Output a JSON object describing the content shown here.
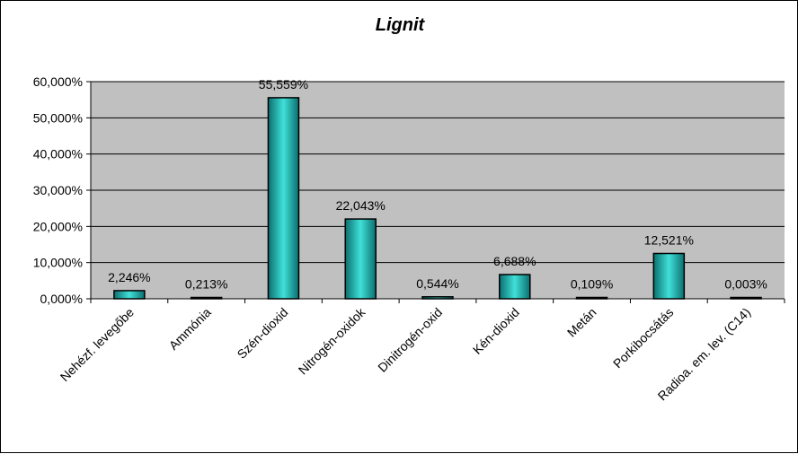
{
  "chart_data": {
    "type": "bar",
    "title": "Lignit",
    "xlabel": "",
    "ylabel": "",
    "ylim": [
      0,
      60
    ],
    "y_ticks": [
      "0,000%",
      "10,000%",
      "20,000%",
      "30,000%",
      "40,000%",
      "50,000%",
      "60,000%"
    ],
    "categories": [
      "Nehézf. levegőbe",
      "Ammónia",
      "Szén-dioxid",
      "Nitrogén-oxidok",
      "Dinitrogén-oxid",
      "Kén-dioxid",
      "Metán",
      "Porkibocsátás",
      "Radioa. em. lev. (C14)"
    ],
    "values": [
      2.246,
      0.213,
      55.559,
      22.043,
      0.544,
      6.688,
      0.109,
      12.521,
      0.003
    ],
    "data_labels": [
      "2,246%",
      "0,213%",
      "55,559%",
      "22,043%",
      "0,544%",
      "6,688%",
      "0,109%",
      "12,521%",
      "0,003%"
    ],
    "grid": true,
    "legend": "none",
    "colors": {
      "plot_bg": "#c0c0c0",
      "bar_dark": "#0b6f6f",
      "bar_light": "#40e0d8",
      "grid": "#000000"
    }
  }
}
